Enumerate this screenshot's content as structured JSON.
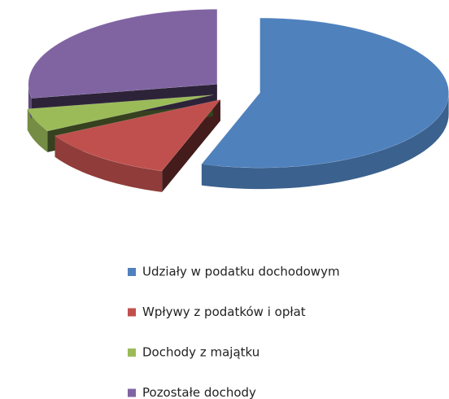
{
  "chart_data": {
    "type": "pie",
    "categories": [
      "Udziały w podatku dochodowym",
      "Wpływy z podatków i opłat",
      "Dochody z majątku",
      "Pozostałe dochody"
    ],
    "values": [
      55,
      12,
      5,
      28
    ],
    "colors": [
      "#4f81bd",
      "#c0504d",
      "#9bbb59",
      "#8064a2"
    ],
    "legend": "bottom"
  }
}
